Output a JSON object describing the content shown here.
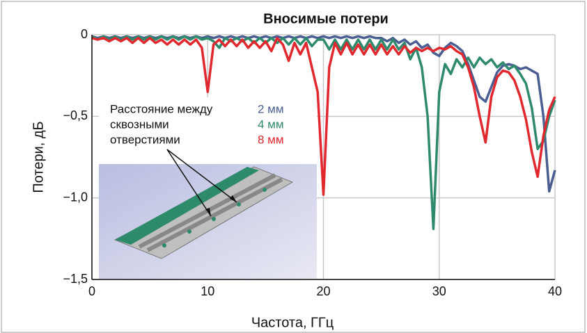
{
  "chart_data": {
    "type": "line",
    "title": "Вносимые потери",
    "xlabel": "Частота, ГГц",
    "ylabel": "Потери, дБ",
    "annotation": [
      "Расстояние между",
      "сквозными",
      "отверстиями"
    ],
    "xlim": [
      0,
      40
    ],
    "ylim": [
      -1.5,
      0
    ],
    "xticks": [
      0,
      10,
      20,
      30,
      40
    ],
    "yticks": [
      0,
      {
        "value": -0.5,
        "label": "−0,5"
      },
      {
        "value": -1.0,
        "label": "−1,0"
      },
      {
        "value": -1.5,
        "label": "−1,5"
      }
    ],
    "grid": true,
    "x": [
      0,
      0.5,
      1,
      1.5,
      2,
      2.5,
      3,
      3.5,
      4,
      4.5,
      5,
      5.5,
      6,
      6.5,
      7,
      7.5,
      8,
      8.5,
      9,
      9.5,
      10,
      10.5,
      11,
      11.5,
      12,
      12.5,
      13,
      13.5,
      14,
      14.5,
      15,
      15.5,
      16,
      16.5,
      17,
      17.5,
      18,
      18.5,
      19,
      19.5,
      20,
      20.5,
      21,
      21.5,
      22,
      22.5,
      23,
      23.5,
      24,
      24.5,
      25,
      25.5,
      26,
      26.5,
      27,
      27.5,
      28,
      28.5,
      29,
      29.5,
      30,
      30.5,
      31,
      31.5,
      32,
      32.5,
      33,
      33.5,
      34,
      34.5,
      35,
      35.5,
      36,
      36.5,
      37,
      37.5,
      38,
      38.5,
      39,
      39.5,
      40
    ],
    "series": [
      {
        "name": "2 мм",
        "color": "#4a5e91",
        "values": [
          -0.01,
          -0.02,
          -0.01,
          -0.02,
          -0.01,
          -0.02,
          -0.01,
          -0.02,
          -0.01,
          -0.02,
          -0.01,
          -0.02,
          -0.01,
          -0.02,
          -0.01,
          -0.02,
          -0.01,
          -0.02,
          -0.01,
          -0.02,
          -0.01,
          -0.02,
          -0.01,
          -0.02,
          -0.01,
          -0.02,
          -0.01,
          -0.02,
          -0.01,
          -0.02,
          -0.01,
          -0.02,
          -0.01,
          -0.02,
          -0.01,
          -0.02,
          -0.01,
          -0.02,
          -0.01,
          -0.02,
          -0.01,
          -0.02,
          -0.01,
          -0.02,
          -0.01,
          -0.02,
          -0.01,
          -0.02,
          -0.01,
          -0.02,
          -0.02,
          -0.04,
          -0.02,
          -0.05,
          -0.03,
          -0.06,
          -0.04,
          -0.08,
          -0.06,
          -0.11,
          -0.13,
          -0.08,
          -0.05,
          -0.07,
          -0.1,
          -0.18,
          -0.28,
          -0.38,
          -0.41,
          -0.32,
          -0.23,
          -0.19,
          -0.18,
          -0.19,
          -0.21,
          -0.2,
          -0.22,
          -0.24,
          -0.5,
          -0.96,
          -0.83
        ]
      },
      {
        "name": "4 мм",
        "color": "#2f8a6d",
        "values": [
          -0.01,
          -0.03,
          -0.01,
          -0.03,
          -0.01,
          -0.03,
          -0.01,
          -0.03,
          -0.01,
          -0.03,
          -0.01,
          -0.03,
          -0.01,
          -0.03,
          -0.01,
          -0.03,
          -0.01,
          -0.03,
          -0.01,
          -0.03,
          -0.02,
          -0.04,
          -0.08,
          -0.02,
          -0.04,
          -0.02,
          -0.04,
          -0.02,
          -0.05,
          -0.02,
          -0.05,
          -0.02,
          -0.05,
          -0.02,
          -0.06,
          -0.02,
          -0.06,
          -0.02,
          -0.07,
          -0.03,
          -0.03,
          -0.09,
          -0.03,
          -0.09,
          -0.03,
          -0.09,
          -0.03,
          -0.09,
          -0.03,
          -0.09,
          -0.03,
          -0.09,
          -0.03,
          -0.09,
          -0.05,
          -0.15,
          -0.08,
          -0.2,
          -0.5,
          -1.19,
          -0.35,
          -0.18,
          -0.24,
          -0.15,
          -0.2,
          -0.14,
          -0.2,
          -0.14,
          -0.18,
          -0.15,
          -0.2,
          -0.17,
          -0.21,
          -0.19,
          -0.24,
          -0.3,
          -0.45,
          -0.7,
          -0.65,
          -0.5,
          -0.4
        ]
      },
      {
        "name": "8 мм",
        "color": "#e0282e",
        "values": [
          -0.02,
          -0.03,
          -0.02,
          -0.04,
          -0.02,
          -0.04,
          -0.02,
          -0.05,
          -0.02,
          -0.05,
          -0.02,
          -0.05,
          -0.03,
          -0.06,
          -0.03,
          -0.06,
          -0.03,
          -0.06,
          -0.03,
          -0.08,
          -0.35,
          -0.06,
          -0.03,
          -0.07,
          -0.03,
          -0.07,
          -0.03,
          -0.08,
          -0.04,
          -0.08,
          -0.04,
          -0.1,
          -0.02,
          -0.06,
          -0.16,
          -0.05,
          -0.12,
          -0.05,
          -0.2,
          -0.35,
          -0.98,
          -0.2,
          -0.05,
          -0.12,
          -0.05,
          -0.12,
          -0.06,
          -0.12,
          -0.06,
          -0.12,
          -0.06,
          -0.12,
          -0.07,
          -0.12,
          -0.07,
          -0.11,
          -0.08,
          -0.1,
          -0.08,
          -0.1,
          -0.08,
          -0.09,
          -0.07,
          -0.1,
          -0.12,
          -0.2,
          -0.32,
          -0.5,
          -0.66,
          -0.38,
          -0.26,
          -0.22,
          -0.23,
          -0.28,
          -0.38,
          -0.52,
          -0.72,
          -0.87,
          -0.62,
          -0.46,
          -0.38
        ]
      }
    ]
  }
}
